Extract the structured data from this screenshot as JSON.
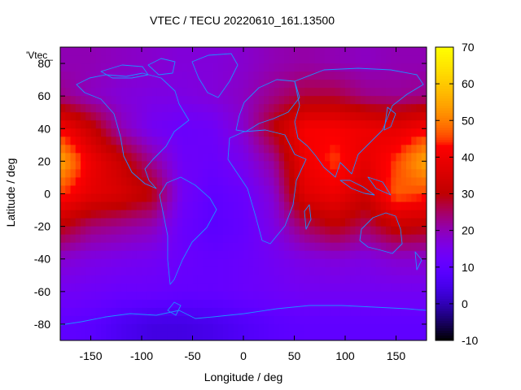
{
  "chart_data": {
    "type": "heatmap",
    "title": "VTEC / TECU 20220610_161.13500",
    "xlabel": "Longitude / deg",
    "ylabel": "Latitude / deg",
    "key_label": "'Vtec_",
    "xlim": [
      -180,
      180
    ],
    "ylim": [
      -90,
      90
    ],
    "xticks": [
      -150,
      -100,
      -50,
      0,
      50,
      100,
      150
    ],
    "yticks": [
      -80,
      -60,
      -40,
      -20,
      0,
      20,
      40,
      60,
      80
    ],
    "colorbar": {
      "range": [
        -10,
        70
      ],
      "ticks": [
        -10,
        0,
        10,
        20,
        30,
        40,
        50,
        60,
        70
      ],
      "palette": "gnuplot-rgbformulae-7-5-15"
    },
    "grid": false,
    "overlay": "continent coastlines",
    "grid_longitudes": [
      -180,
      -150,
      -120,
      -90,
      -60,
      -30,
      0,
      30,
      60,
      90,
      120,
      150,
      180
    ],
    "grid_latitudes": [
      80,
      60,
      40,
      20,
      0,
      -20,
      -40,
      -60,
      -80
    ],
    "vtec_tecu_rows_north_to_south": [
      [
        20,
        20,
        19,
        18,
        17,
        17,
        18,
        20,
        21,
        20,
        19,
        20,
        20
      ],
      [
        23,
        19,
        17,
        16,
        16,
        17,
        19,
        23,
        27,
        27,
        23,
        22,
        23
      ],
      [
        42,
        32,
        20,
        14,
        12,
        13,
        18,
        30,
        42,
        42,
        40,
        38,
        42
      ],
      [
        55,
        40,
        32,
        22,
        13,
        12,
        15,
        22,
        40,
        45,
        38,
        45,
        55
      ],
      [
        45,
        38,
        35,
        30,
        14,
        10,
        12,
        18,
        37,
        40,
        33,
        47,
        45
      ],
      [
        30,
        24,
        22,
        20,
        12,
        9,
        11,
        16,
        25,
        30,
        25,
        32,
        30
      ],
      [
        18,
        16,
        15,
        14,
        12,
        11,
        12,
        14,
        16,
        17,
        16,
        18,
        18
      ],
      [
        14,
        13,
        12,
        12,
        11,
        11,
        12,
        13,
        14,
        14,
        14,
        14,
        14
      ],
      [
        10,
        9,
        6,
        4,
        4,
        5,
        7,
        9,
        10,
        10,
        10,
        10,
        10
      ]
    ],
    "colors": {
      "coastline": "#1e90ff"
    }
  }
}
